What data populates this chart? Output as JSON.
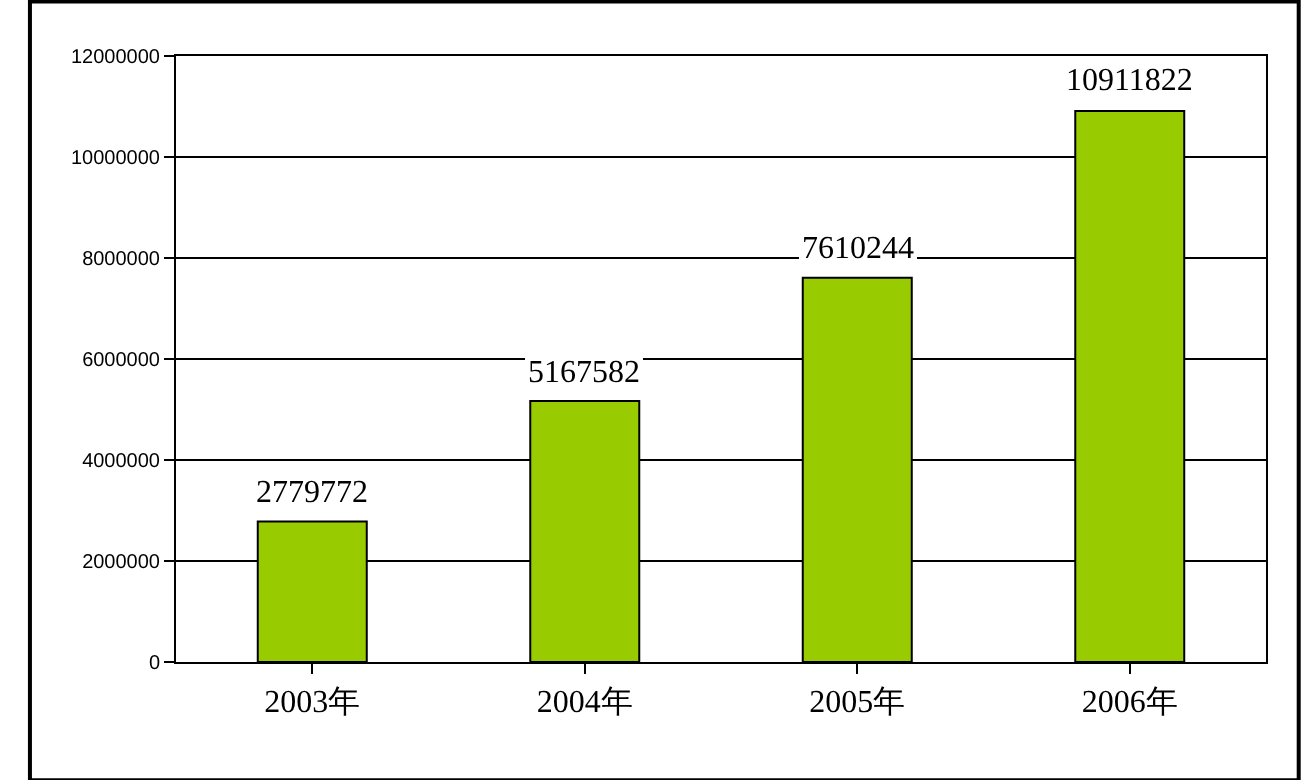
{
  "chart_data": {
    "type": "bar",
    "categories": [
      "2003年",
      "2004年",
      "2005年",
      "2006年"
    ],
    "series": [
      {
        "color": "#99cc00",
        "values": [
          2779772,
          5167582,
          7610244,
          10911822
        ]
      }
    ],
    "ylim": [
      0,
      12000000
    ],
    "yticks": [
      0,
      2000000,
      4000000,
      6000000,
      8000000,
      10000000,
      12000000
    ],
    "grid": "y",
    "data_labels": true,
    "legend": false
  }
}
